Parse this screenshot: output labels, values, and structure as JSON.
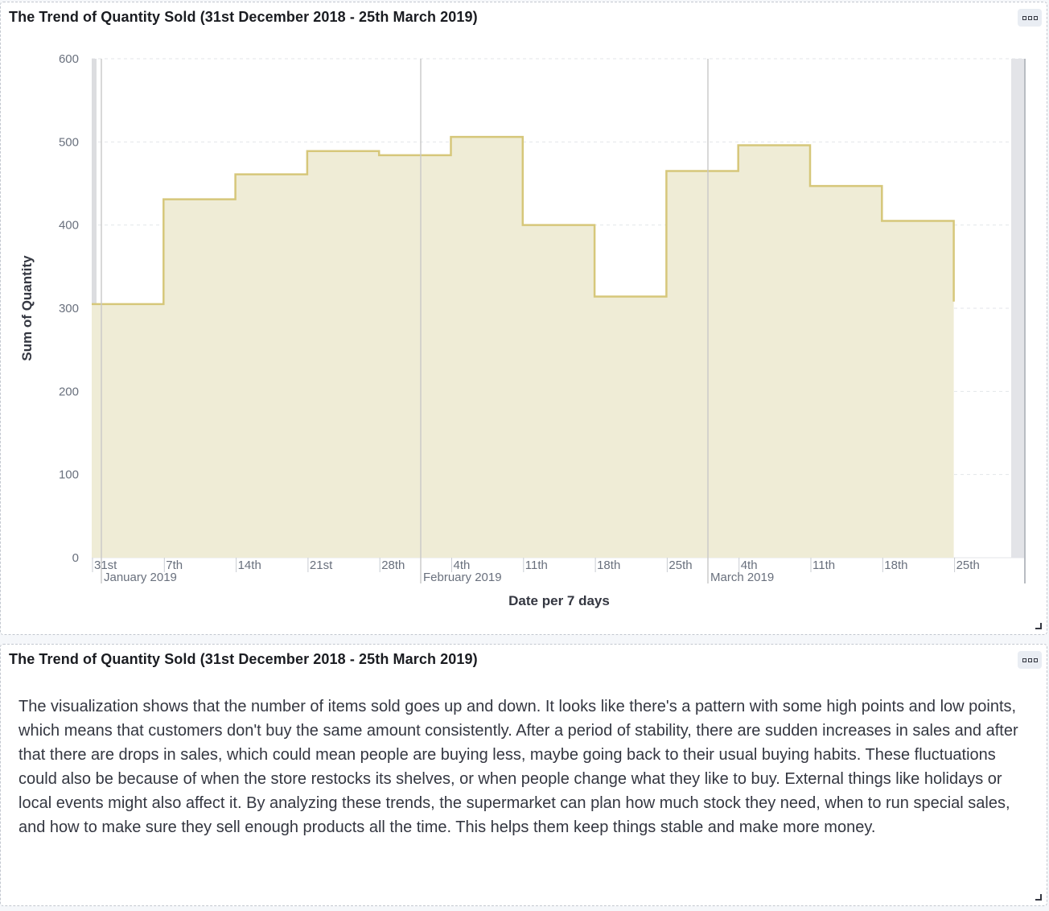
{
  "panels": {
    "chart_panel": {
      "title": "The Trend of Quantity Sold (31st December 2018 - 25th March 2019)"
    },
    "text_panel": {
      "title": "The Trend of Quantity Sold (31st December 2018 - 25th March 2019)",
      "body": "The visualization shows that the number of items sold goes up and down. It looks like there's a pattern with some high points and low points, which means that customers don't buy the same amount consistently. After a period of stability, there are sudden increases in sales and after that there are drops in sales, which could mean people are buying less, maybe going back to their usual buying habits. These fluctuations could also be because of when the store restocks its shelves, or when people change what they like to buy. External things like holidays or local events might also affect it. By analyzing these trends, the supermarket can plan how much stock they need, when to run special sales, and how to make sure they sell enough products all the time. This helps them keep things stable and make more money."
    }
  },
  "icons": {
    "panel_menu": "options-menu-icon",
    "resize": "resize-handle-icon"
  },
  "colors": {
    "area_fill": "#efecd6",
    "line": "#d6c77a",
    "grid": "#e3e6ea",
    "month_line": "#c8c8c8"
  },
  "chart_data": {
    "type": "area",
    "step": true,
    "title": "",
    "xlabel": "Date per 7 days",
    "ylabel": "Sum of Quantity",
    "ylim": [
      0,
      600
    ],
    "yticks": [
      0,
      100,
      200,
      300,
      400,
      500,
      600
    ],
    "grid": true,
    "x_tick_labels": [
      "31st",
      "7th",
      "14th",
      "21st",
      "28th",
      "4th",
      "11th",
      "18th",
      "25th",
      "4th",
      "11th",
      "18th",
      "25th"
    ],
    "month_labels": [
      {
        "label": "January 2019",
        "at_tick": 0
      },
      {
        "label": "February 2019",
        "at_tick": 5
      },
      {
        "label": "March 2019",
        "at_tick": 9
      }
    ],
    "x": [
      "2018-12-31",
      "2019-01-07",
      "2019-01-14",
      "2019-01-21",
      "2019-01-28",
      "2019-02-04",
      "2019-02-11",
      "2019-02-18",
      "2019-02-25",
      "2019-03-04",
      "2019-03-11",
      "2019-03-18"
    ],
    "series": [
      {
        "values": [
          305,
          431,
          461,
          489,
          484,
          506,
          400,
          314,
          465,
          496,
          447,
          405
        ]
      }
    ]
  }
}
